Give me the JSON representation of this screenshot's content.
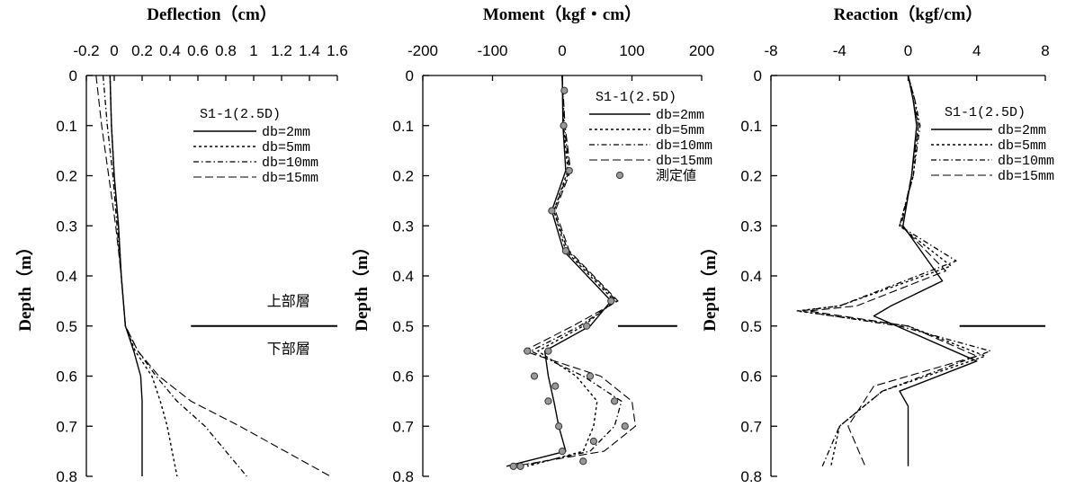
{
  "chart_data": [
    {
      "type": "line",
      "title": "Deflection（cm）",
      "ylabel": "Depth（m）",
      "xlim": [
        -0.2,
        1.6
      ],
      "ylim": [
        0,
        0.8
      ],
      "x_ticks": [
        "-0.2",
        "0",
        "0.2",
        "0.4",
        "0.6",
        "0.8",
        "1",
        "1.2",
        "1.4",
        "1.6"
      ],
      "x_tick_values": [
        -0.2,
        0,
        0.2,
        0.4,
        0.6,
        0.8,
        1.0,
        1.2,
        1.4,
        1.6
      ],
      "y_ticks": [
        "0",
        "0.1",
        "0.2",
        "0.3",
        "0.4",
        "0.5",
        "0.6",
        "0.7",
        "0.8"
      ],
      "y_tick_values": [
        0,
        0.1,
        0.2,
        0.3,
        0.4,
        0.5,
        0.6,
        0.7,
        0.8
      ],
      "legend_title": "S1-1(2.5D)",
      "legend_position": "top-right",
      "series": [
        {
          "name": "db=2mm",
          "style": "solid",
          "points": [
            [
              -0.03,
              0
            ],
            [
              -0.02,
              0.1
            ],
            [
              0,
              0.2
            ],
            [
              0.03,
              0.3
            ],
            [
              0.05,
              0.4
            ],
            [
              0.08,
              0.5
            ],
            [
              0.14,
              0.55
            ],
            [
              0.19,
              0.6
            ],
            [
              0.2,
              0.65
            ],
            [
              0.2,
              0.7
            ],
            [
              0.2,
              0.8
            ]
          ]
        },
        {
          "name": "db=5mm",
          "style": "dashed",
          "points": [
            [
              -0.03,
              0
            ],
            [
              -0.02,
              0.1
            ],
            [
              0,
              0.2
            ],
            [
              0.03,
              0.3
            ],
            [
              0.05,
              0.4
            ],
            [
              0.08,
              0.5
            ],
            [
              0.15,
              0.55
            ],
            [
              0.27,
              0.6
            ],
            [
              0.33,
              0.65
            ],
            [
              0.38,
              0.7
            ],
            [
              0.45,
              0.8
            ]
          ]
        },
        {
          "name": "db=10mm",
          "style": "dashdot",
          "points": [
            [
              -0.08,
              0
            ],
            [
              -0.05,
              0.1
            ],
            [
              -0.01,
              0.2
            ],
            [
              0.02,
              0.3
            ],
            [
              0.05,
              0.4
            ],
            [
              0.08,
              0.5
            ],
            [
              0.17,
              0.55
            ],
            [
              0.3,
              0.6
            ],
            [
              0.45,
              0.65
            ],
            [
              0.65,
              0.7
            ],
            [
              0.95,
              0.8
            ]
          ]
        },
        {
          "name": "db=15mm",
          "style": "longdash",
          "points": [
            [
              -0.13,
              0
            ],
            [
              -0.09,
              0.1
            ],
            [
              -0.04,
              0.2
            ],
            [
              0.01,
              0.3
            ],
            [
              0.05,
              0.4
            ],
            [
              0.08,
              0.5
            ],
            [
              0.17,
              0.55
            ],
            [
              0.32,
              0.6
            ],
            [
              0.55,
              0.65
            ],
            [
              0.9,
              0.7
            ],
            [
              1.55,
              0.8
            ]
          ]
        }
      ],
      "hline": {
        "value": 0.5,
        "x_range": [
          0.55,
          1.6
        ]
      },
      "annotations": [
        {
          "text": "上部層",
          "x": 1.25,
          "y": 0.46
        },
        {
          "text": "下部層",
          "x": 1.25,
          "y": 0.555
        }
      ]
    },
    {
      "type": "line",
      "title": "Moment（kgf・cm）",
      "ylabel": "Depth（m）",
      "xlim": [
        -200,
        200
      ],
      "ylim": [
        0,
        0.8
      ],
      "x_ticks": [
        "-200",
        "-100",
        "0",
        "100",
        "200"
      ],
      "x_tick_values": [
        -200,
        -100,
        0,
        100,
        200
      ],
      "y_ticks": [
        "0",
        "0.1",
        "0.2",
        "0.3",
        "0.4",
        "0.5",
        "0.6",
        "0.7",
        "0.8"
      ],
      "y_tick_values": [
        0,
        0.1,
        0.2,
        0.3,
        0.4,
        0.5,
        0.6,
        0.7,
        0.8
      ],
      "legend_title": "S1-1(2.5D)",
      "legend_position": "top-right",
      "series": [
        {
          "name": "db=2mm",
          "style": "solid",
          "points": [
            [
              0,
              0
            ],
            [
              1,
              0.1
            ],
            [
              5,
              0.19
            ],
            [
              -15,
              0.27
            ],
            [
              2,
              0.35
            ],
            [
              70,
              0.45
            ],
            [
              40,
              0.5
            ],
            [
              -25,
              0.55
            ],
            [
              -20,
              0.6
            ],
            [
              -12,
              0.65
            ],
            [
              -5,
              0.7
            ],
            [
              5,
              0.75
            ],
            [
              -80,
              0.78
            ]
          ]
        },
        {
          "name": "db=5mm",
          "style": "dashed",
          "points": [
            [
              0,
              0
            ],
            [
              2,
              0.1
            ],
            [
              8,
              0.19
            ],
            [
              -12,
              0.27
            ],
            [
              5,
              0.35
            ],
            [
              75,
              0.45
            ],
            [
              30,
              0.5
            ],
            [
              -35,
              0.55
            ],
            [
              20,
              0.6
            ],
            [
              50,
              0.65
            ],
            [
              45,
              0.7
            ],
            [
              30,
              0.75
            ],
            [
              -50,
              0.78
            ]
          ]
        },
        {
          "name": "db=10mm",
          "style": "dashdot",
          "points": [
            [
              0,
              0
            ],
            [
              3,
              0.1
            ],
            [
              10,
              0.19
            ],
            [
              -12,
              0.27
            ],
            [
              8,
              0.35
            ],
            [
              78,
              0.45
            ],
            [
              25,
              0.5
            ],
            [
              -45,
              0.55
            ],
            [
              30,
              0.6
            ],
            [
              85,
              0.65
            ],
            [
              75,
              0.7
            ],
            [
              40,
              0.75
            ],
            [
              -60,
              0.78
            ]
          ]
        },
        {
          "name": "db=15mm",
          "style": "longdash",
          "points": [
            [
              0,
              0
            ],
            [
              4,
              0.1
            ],
            [
              12,
              0.19
            ],
            [
              -10,
              0.27
            ],
            [
              10,
              0.35
            ],
            [
              80,
              0.45
            ],
            [
              15,
              0.5
            ],
            [
              -55,
              0.55
            ],
            [
              55,
              0.6
            ],
            [
              100,
              0.65
            ],
            [
              105,
              0.7
            ],
            [
              60,
              0.75
            ],
            [
              -70,
              0.78
            ]
          ]
        },
        {
          "name": "測定値",
          "style": "markers",
          "points": [
            [
              3,
              0.03
            ],
            [
              2,
              0.1
            ],
            [
              10,
              0.19
            ],
            [
              -15,
              0.27
            ],
            [
              5,
              0.35
            ],
            [
              70,
              0.45
            ],
            [
              35,
              0.5
            ],
            [
              -50,
              0.55
            ],
            [
              -40,
              0.6
            ],
            [
              -20,
              0.65
            ],
            [
              -5,
              0.7
            ],
            [
              0,
              0.75
            ],
            [
              -70,
              0.78
            ],
            [
              -20,
              0.55
            ],
            [
              -10,
              0.62
            ],
            [
              40,
              0.6
            ],
            [
              75,
              0.65
            ],
            [
              90,
              0.7
            ],
            [
              45,
              0.73
            ],
            [
              -60,
              0.78
            ],
            [
              30,
              0.77
            ]
          ]
        }
      ],
      "hline": {
        "value": 0.5,
        "x_range": [
          80,
          165
        ]
      }
    },
    {
      "type": "line",
      "title": "Reaction（kgf/cm）",
      "ylabel": "Depth（m）",
      "xlim": [
        -8,
        8
      ],
      "ylim": [
        0,
        0.8
      ],
      "x_ticks": [
        "-8",
        "-4",
        "0",
        "4",
        "8"
      ],
      "x_tick_values": [
        -8,
        -4,
        0,
        4,
        8
      ],
      "y_ticks": [
        "0",
        "0.1",
        "0.2",
        "0.3",
        "0.4",
        "0.5",
        "0.6",
        "0.7",
        "0.8"
      ],
      "y_tick_values": [
        0,
        0.1,
        0.2,
        0.3,
        0.4,
        0.5,
        0.6,
        0.7,
        0.8
      ],
      "legend_title": "S1-1(2.5D)",
      "legend_position": "top-right",
      "series": [
        {
          "name": "db=2mm",
          "style": "solid",
          "points": [
            [
              0,
              0
            ],
            [
              0.3,
              0.05
            ],
            [
              0.5,
              0.1
            ],
            [
              0.2,
              0.2
            ],
            [
              -0.3,
              0.3
            ],
            [
              2,
              0.41
            ],
            [
              -1,
              0.46
            ],
            [
              -2,
              0.48
            ],
            [
              4,
              0.57
            ],
            [
              -0.5,
              0.63
            ],
            [
              0,
              0.66
            ],
            [
              0,
              0.72
            ],
            [
              0,
              0.78
            ]
          ]
        },
        {
          "name": "db=5mm",
          "style": "dashed",
          "points": [
            [
              0,
              0
            ],
            [
              0.4,
              0.05
            ],
            [
              0.6,
              0.1
            ],
            [
              0.3,
              0.2
            ],
            [
              -0.5,
              0.3
            ],
            [
              2.5,
              0.38
            ],
            [
              -4,
              0.46
            ],
            [
              -6.5,
              0.47
            ],
            [
              0,
              0.5
            ],
            [
              4.5,
              0.56
            ],
            [
              -1.5,
              0.63
            ],
            [
              -4,
              0.7
            ],
            [
              -4.5,
              0.78
            ]
          ]
        },
        {
          "name": "db=10mm",
          "style": "dashdot",
          "points": [
            [
              0,
              0
            ],
            [
              0.4,
              0.05
            ],
            [
              0.7,
              0.1
            ],
            [
              0.3,
              0.2
            ],
            [
              -0.5,
              0.3
            ],
            [
              2.8,
              0.37
            ],
            [
              -4,
              0.46
            ],
            [
              -6.3,
              0.47
            ],
            [
              -0.5,
              0.5
            ],
            [
              4.8,
              0.55
            ],
            [
              -1.5,
              0.63
            ],
            [
              -4,
              0.7
            ],
            [
              -5,
              0.78
            ]
          ]
        },
        {
          "name": "db=15mm",
          "style": "longdash",
          "points": [
            [
              0,
              0
            ],
            [
              0.3,
              0.05
            ],
            [
              0.6,
              0.1
            ],
            [
              0.2,
              0.2
            ],
            [
              -0.4,
              0.3
            ],
            [
              2.2,
              0.39
            ],
            [
              -3,
              0.46
            ],
            [
              -5.8,
              0.47
            ],
            [
              0,
              0.5
            ],
            [
              4,
              0.56
            ],
            [
              -2,
              0.62
            ],
            [
              -3.5,
              0.7
            ],
            [
              -2.5,
              0.78
            ]
          ]
        }
      ],
      "hline": {
        "value": 0.5,
        "x_range": [
          3,
          8
        ]
      }
    }
  ]
}
